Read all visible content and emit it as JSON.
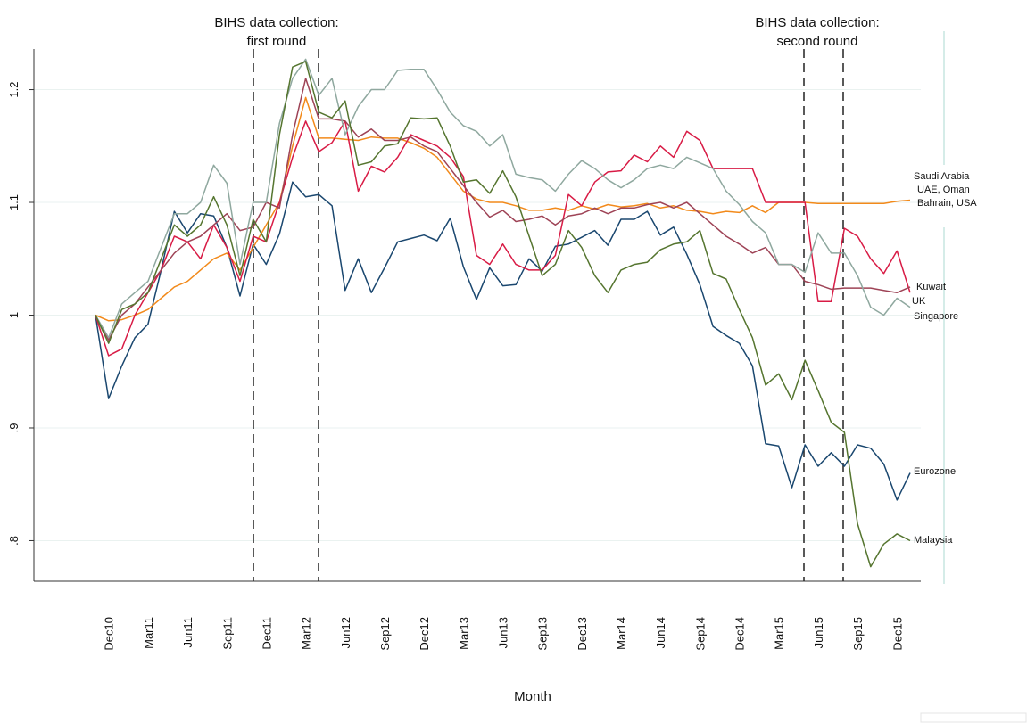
{
  "chart_data": {
    "type": "line",
    "x_title": "Month",
    "annotations": [
      {
        "text": [
          "BIHS data collection:",
          "first round"
        ]
      },
      {
        "text": [
          "BIHS data collection:",
          "second round"
        ]
      }
    ],
    "categories": [
      null,
      "Dec10",
      null,
      null,
      "Mar11",
      null,
      null,
      "Jun11",
      null,
      null,
      "Sep11",
      null,
      null,
      "Dec11",
      null,
      null,
      "Mar12",
      null,
      null,
      "Jun12",
      null,
      null,
      "Sep12",
      null,
      null,
      "Dec12",
      null,
      null,
      "Mar13",
      null,
      null,
      "Jun13",
      null,
      null,
      "Sep13",
      null,
      null,
      "Dec13",
      null,
      null,
      "Mar14",
      null,
      null,
      "Jun14",
      null,
      null,
      "Sep14",
      null,
      null,
      "Dec14",
      null,
      null,
      "Mar15",
      null,
      null,
      "Jun15",
      null,
      null,
      "Sep15",
      null,
      null,
      "Dec15",
      null
    ],
    "ylim": [
      0.764,
      1.236
    ],
    "yticks": [
      {
        "value": 0.8,
        "label": ".8"
      },
      {
        "value": 0.9,
        "label": ".9"
      },
      1,
      1.1,
      1.2
    ],
    "grid": true,
    "series": [
      {
        "name": "Eurozone",
        "color": "#1a476f",
        "values": [
          1.0,
          0.926,
          0.955,
          0.98,
          0.992,
          1.04,
          1.092,
          1.073,
          1.09,
          1.088,
          1.06,
          1.017,
          1.063,
          1.045,
          1.072,
          1.118,
          1.105,
          1.107,
          1.097,
          1.022,
          1.05,
          1.02,
          1.042,
          1.065,
          1.068,
          1.071,
          1.066,
          1.086,
          1.043,
          1.014,
          1.042,
          1.026,
          1.027,
          1.05,
          1.039,
          1.061,
          1.063,
          1.069,
          1.075,
          1.062,
          1.085,
          1.085,
          1.092,
          1.071,
          1.078,
          1.054,
          1.027,
          0.99,
          0.982,
          0.975,
          0.955,
          0.886,
          0.884,
          0.847,
          0.885,
          0.866,
          0.878,
          0.866,
          0.885,
          0.882,
          0.868,
          0.836,
          0.86
        ]
      },
      {
        "name": [
          "Saudi Arabia",
          "UAE, Oman",
          "Bahrain, USA"
        ],
        "color": "#f28a1b",
        "values": [
          1.0,
          0.995,
          0.996,
          1.0,
          1.005,
          1.015,
          1.025,
          1.03,
          1.04,
          1.05,
          1.055,
          1.04,
          1.06,
          1.08,
          1.1,
          1.15,
          1.193,
          1.157,
          1.157,
          1.156,
          1.155,
          1.158,
          1.157,
          1.157,
          1.153,
          1.148,
          1.14,
          1.125,
          1.11,
          1.103,
          1.1,
          1.1,
          1.097,
          1.093,
          1.093,
          1.095,
          1.093,
          1.097,
          1.094,
          1.098,
          1.096,
          1.097,
          1.099,
          1.095,
          1.097,
          1.093,
          1.092,
          1.09,
          1.092,
          1.091,
          1.097,
          1.091,
          1.1,
          1.1,
          1.1,
          1.099,
          1.099,
          1.099,
          1.099,
          1.099,
          1.099,
          1.101,
          1.102
        ]
      },
      {
        "name": "Kuwait",
        "color": "#d81b45",
        "values": [
          1.0,
          0.964,
          0.97,
          1.0,
          1.02,
          1.04,
          1.07,
          1.065,
          1.05,
          1.08,
          1.06,
          1.03,
          1.07,
          1.065,
          1.1,
          1.14,
          1.172,
          1.145,
          1.153,
          1.172,
          1.11,
          1.132,
          1.127,
          1.14,
          1.16,
          1.155,
          1.15,
          1.14,
          1.123,
          1.053,
          1.045,
          1.063,
          1.045,
          1.04,
          1.04,
          1.053,
          1.107,
          1.097,
          1.118,
          1.127,
          1.128,
          1.142,
          1.136,
          1.15,
          1.14,
          1.163,
          1.155,
          1.13,
          1.13,
          1.13,
          1.13,
          1.1,
          1.1,
          1.1,
          1.1,
          1.012,
          1.012,
          1.077,
          1.07,
          1.05,
          1.037,
          1.057,
          1.02
        ]
      },
      {
        "name": "UK",
        "color": "#9e4356",
        "values": [
          1.0,
          0.978,
          1.0,
          1.01,
          1.025,
          1.04,
          1.055,
          1.065,
          1.07,
          1.08,
          1.09,
          1.075,
          1.078,
          1.1,
          1.095,
          1.16,
          1.21,
          1.174,
          1.174,
          1.172,
          1.158,
          1.165,
          1.155,
          1.155,
          1.158,
          1.15,
          1.145,
          1.13,
          1.115,
          1.1,
          1.087,
          1.093,
          1.083,
          1.085,
          1.088,
          1.08,
          1.088,
          1.09,
          1.095,
          1.09,
          1.095,
          1.095,
          1.098,
          1.1,
          1.095,
          1.1,
          1.09,
          1.08,
          1.07,
          1.063,
          1.055,
          1.06,
          1.045,
          1.045,
          1.03,
          1.027,
          1.023,
          1.024,
          1.024,
          1.024,
          1.022,
          1.02,
          1.025
        ]
      },
      {
        "name": "Singapore",
        "color": "#8fa89f",
        "values": [
          1.0,
          0.98,
          1.01,
          1.02,
          1.03,
          1.06,
          1.09,
          1.09,
          1.1,
          1.133,
          1.117,
          1.045,
          1.1,
          1.1,
          1.17,
          1.21,
          1.227,
          1.195,
          1.21,
          1.16,
          1.185,
          1.2,
          1.2,
          1.217,
          1.218,
          1.218,
          1.2,
          1.18,
          1.168,
          1.163,
          1.15,
          1.16,
          1.125,
          1.122,
          1.12,
          1.11,
          1.125,
          1.137,
          1.13,
          1.12,
          1.113,
          1.12,
          1.13,
          1.133,
          1.13,
          1.14,
          1.135,
          1.13,
          1.11,
          1.098,
          1.083,
          1.073,
          1.045,
          1.045,
          1.038,
          1.073,
          1.055,
          1.055,
          1.035,
          1.007,
          1.0,
          1.015,
          1.007
        ]
      },
      {
        "name": "Malaysia",
        "color": "#55752f",
        "values": [
          1.0,
          0.975,
          1.005,
          1.01,
          1.02,
          1.05,
          1.08,
          1.07,
          1.08,
          1.105,
          1.08,
          1.035,
          1.085,
          1.065,
          1.16,
          1.22,
          1.225,
          1.18,
          1.175,
          1.19,
          1.133,
          1.136,
          1.15,
          1.152,
          1.175,
          1.174,
          1.175,
          1.15,
          1.118,
          1.12,
          1.108,
          1.128,
          1.105,
          1.07,
          1.035,
          1.045,
          1.075,
          1.06,
          1.035,
          1.02,
          1.04,
          1.045,
          1.047,
          1.058,
          1.063,
          1.065,
          1.075,
          1.037,
          1.032,
          1.005,
          0.98,
          0.938,
          0.948,
          0.925,
          0.96,
          0.933,
          0.905,
          0.896,
          0.815,
          0.777,
          0.797,
          0.806,
          0.8
        ]
      }
    ]
  }
}
